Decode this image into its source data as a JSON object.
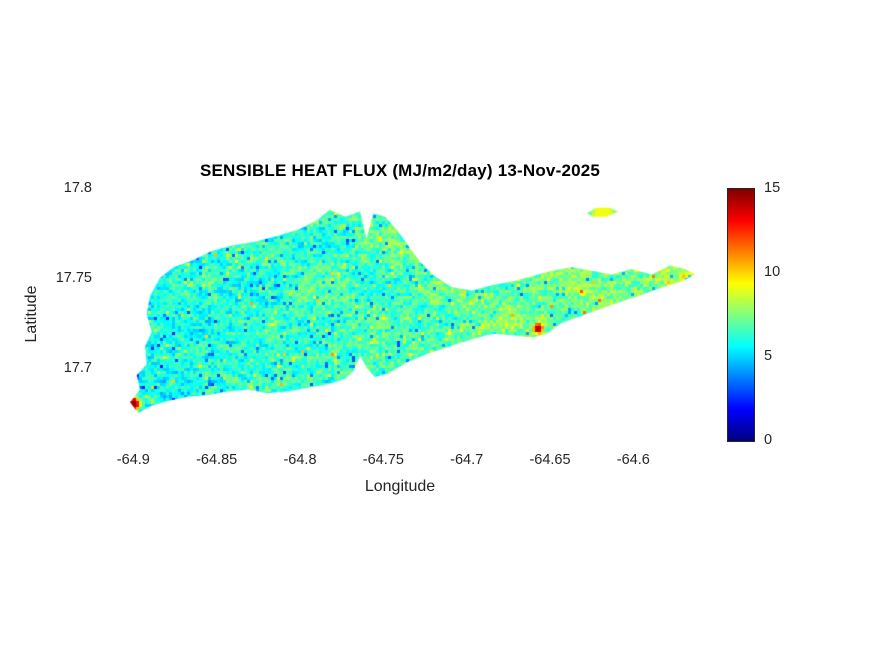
{
  "chart_data": {
    "type": "heatmap",
    "title": "SENSIBLE HEAT FLUX (MJ/m2/day) 13-Nov-2025",
    "xlabel": "Longitude",
    "ylabel": "Latitude",
    "xlim": [
      -64.92,
      -64.56
    ],
    "ylim": [
      17.66,
      17.8
    ],
    "grid": false,
    "xticks": [
      {
        "value": -64.9,
        "label": "-64.9"
      },
      {
        "value": -64.85,
        "label": "-64.85"
      },
      {
        "value": -64.8,
        "label": "-64.8"
      },
      {
        "value": -64.75,
        "label": "-64.75"
      },
      {
        "value": -64.7,
        "label": "-64.7"
      },
      {
        "value": -64.65,
        "label": "-64.65"
      },
      {
        "value": -64.6,
        "label": "-64.6"
      }
    ],
    "yticks": [
      {
        "value": 17.7,
        "label": "17.7"
      },
      {
        "value": 17.75,
        "label": "17.75"
      },
      {
        "value": 17.8,
        "label": "17.8"
      }
    ],
    "colormap": "jet",
    "colorbar": {
      "position": "right",
      "min": 0,
      "max": 15,
      "ticks": [
        {
          "value": 0,
          "label": "0"
        },
        {
          "value": 5,
          "label": "5"
        },
        {
          "value": 10,
          "label": "10"
        },
        {
          "value": 15,
          "label": "15"
        }
      ]
    },
    "field": {
      "units": "MJ/m2/day",
      "base_value_west": 5.8,
      "base_value_east": 7.7,
      "patch_amplitude": 0.7,
      "noise_amplitude": 1.0,
      "outlier_fraction": 0.05,
      "low_outlier_offset": -2.4,
      "high_outlier_offset": 1.7,
      "hotspots": [
        {
          "lon": -64.9,
          "lat": 17.68,
          "value": 14.5,
          "radius": 0.0038
        },
        {
          "lon": -64.657,
          "lat": 17.722,
          "value": 14.0,
          "radius": 0.003
        },
        {
          "lon": -64.764,
          "lat": 17.701,
          "value": 11.5,
          "radius": 0.0024
        },
        {
          "lon": -64.618,
          "lat": 17.786,
          "value": 9.2,
          "radius": 0.007
        }
      ]
    },
    "region_outline_lonlat": [
      [
        -64.902,
        17.681
      ],
      [
        -64.896,
        17.688
      ],
      [
        -64.898,
        17.696
      ],
      [
        -64.892,
        17.702
      ],
      [
        -64.893,
        17.712
      ],
      [
        -64.889,
        17.72
      ],
      [
        -64.892,
        17.73
      ],
      [
        -64.89,
        17.74
      ],
      [
        -64.884,
        17.75
      ],
      [
        -64.876,
        17.756
      ],
      [
        -64.864,
        17.76
      ],
      [
        -64.853,
        17.765
      ],
      [
        -64.841,
        17.768
      ],
      [
        -64.828,
        17.77
      ],
      [
        -64.815,
        17.773
      ],
      [
        -64.801,
        17.777
      ],
      [
        -64.79,
        17.782
      ],
      [
        -64.782,
        17.788
      ],
      [
        -64.773,
        17.784
      ],
      [
        -64.764,
        17.787
      ],
      [
        -64.76,
        17.772
      ],
      [
        -64.756,
        17.786
      ],
      [
        -64.749,
        17.784
      ],
      [
        -64.742,
        17.777
      ],
      [
        -64.735,
        17.768
      ],
      [
        -64.728,
        17.759
      ],
      [
        -64.719,
        17.751
      ],
      [
        -64.709,
        17.745
      ],
      [
        -64.697,
        17.743
      ],
      [
        -64.685,
        17.746
      ],
      [
        -64.673,
        17.748
      ],
      [
        -64.661,
        17.751
      ],
      [
        -64.649,
        17.754
      ],
      [
        -64.637,
        17.756
      ],
      [
        -64.625,
        17.754
      ],
      [
        -64.613,
        17.752
      ],
      [
        -64.601,
        17.755
      ],
      [
        -64.589,
        17.752
      ],
      [
        -64.578,
        17.757
      ],
      [
        -64.569,
        17.755
      ],
      [
        -64.563,
        17.752
      ],
      [
        -64.571,
        17.748
      ],
      [
        -64.582,
        17.745
      ],
      [
        -64.594,
        17.741
      ],
      [
        -64.607,
        17.737
      ],
      [
        -64.619,
        17.733
      ],
      [
        -64.631,
        17.729
      ],
      [
        -64.643,
        17.725
      ],
      [
        -64.652,
        17.719
      ],
      [
        -64.66,
        17.717
      ],
      [
        -64.672,
        17.718
      ],
      [
        -64.684,
        17.719
      ],
      [
        -64.697,
        17.716
      ],
      [
        -64.71,
        17.712
      ],
      [
        -64.723,
        17.708
      ],
      [
        -64.736,
        17.703
      ],
      [
        -64.747,
        17.697
      ],
      [
        -64.755,
        17.695
      ],
      [
        -64.76,
        17.7
      ],
      [
        -64.764,
        17.707
      ],
      [
        -64.768,
        17.698
      ],
      [
        -64.773,
        17.694
      ],
      [
        -64.783,
        17.691
      ],
      [
        -64.795,
        17.689
      ],
      [
        -64.808,
        17.687
      ],
      [
        -64.82,
        17.686
      ],
      [
        -64.831,
        17.688
      ],
      [
        -64.843,
        17.687
      ],
      [
        -64.855,
        17.685
      ],
      [
        -64.867,
        17.684
      ],
      [
        -64.878,
        17.682
      ],
      [
        -64.889,
        17.679
      ],
      [
        -64.897,
        17.675
      ]
    ],
    "islet_outline_lonlat": [
      [
        -64.628,
        17.786
      ],
      [
        -64.622,
        17.789
      ],
      [
        -64.614,
        17.789
      ],
      [
        -64.609,
        17.787
      ],
      [
        -64.616,
        17.784
      ],
      [
        -64.624,
        17.784
      ]
    ]
  }
}
